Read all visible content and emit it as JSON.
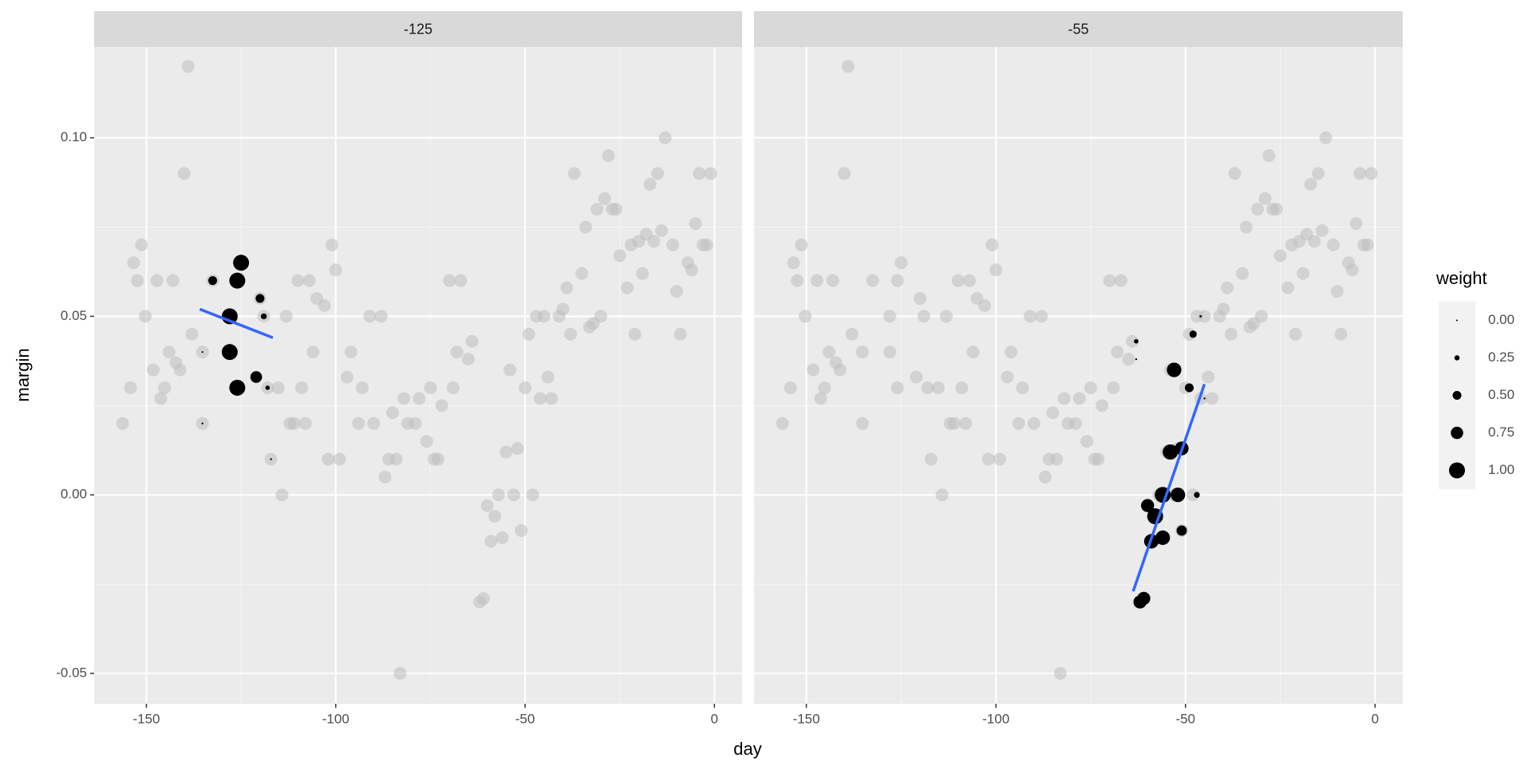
{
  "chart_data": {
    "type": "scatter",
    "x_label": "day",
    "y_label": "margin",
    "xlim": [
      -163.8,
      7.3
    ],
    "xticks": [
      -150,
      -100,
      -50,
      0
    ],
    "ylim": [
      -0.0585,
      0.1254
    ],
    "yticks": [
      {
        "value": -0.05,
        "label": "-0.05"
      },
      {
        "value": 0,
        "label": "0.00"
      },
      {
        "value": 0.05,
        "label": "0.05"
      },
      {
        "value": 0.1,
        "label": "0.10"
      }
    ],
    "grid": true,
    "background_color": "#bdbdbd",
    "weighted_color": "#000000",
    "fit_color": "#3366ff",
    "background": {
      "x": [
        -156.3,
        -154.2,
        -153.4,
        -152.4,
        -151.3,
        -150.3,
        -148.2,
        -147.2,
        -146.2,
        -145.2,
        -144,
        -143,
        -142.2,
        -141.1,
        -140,
        -139,
        -138,
        -135.2,
        -135.2,
        -132.5,
        -128,
        -128,
        -126,
        -126,
        -125,
        -121,
        -120,
        -119,
        -118,
        -117.1,
        -115.2,
        -114.2,
        -113.1,
        -112.1,
        -111,
        -110,
        -109,
        -108,
        -107,
        -106,
        -105,
        -103,
        -102,
        -101,
        -100,
        -99,
        -97,
        -96,
        -94,
        -93,
        -91,
        -90,
        -88,
        -87,
        -86,
        -85,
        -84,
        -83,
        -82,
        -81,
        -79,
        -78,
        -76,
        -75,
        -74,
        -73,
        -72,
        -70,
        -69,
        -68,
        -67,
        -65,
        -64,
        -62,
        -61,
        -60,
        -59,
        -58,
        -57,
        -56,
        -55,
        -54,
        -53,
        -52,
        -51,
        -50,
        -49,
        -48,
        -47,
        -46,
        -45,
        -44,
        -43,
        -41,
        -40,
        -39,
        -38,
        -37,
        -35,
        -34,
        -33,
        -32,
        -31,
        -30,
        -29,
        -28,
        -27,
        -26,
        -25,
        -23,
        -22,
        -21,
        -20,
        -19,
        -18,
        -17,
        -16,
        -15,
        -14,
        -13,
        -11,
        -10,
        -9,
        -7,
        -6,
        -5,
        -4,
        -3,
        -2,
        -1
      ],
      "y": [
        0.02,
        0.03,
        0.065,
        0.06,
        0.07,
        0.05,
        0.035,
        0.06,
        0.027,
        0.03,
        0.04,
        0.06,
        0.037,
        0.035,
        0.09,
        0.12,
        0.045,
        0.04,
        0.02,
        0.06,
        0.05,
        0.04,
        0.06,
        0.03,
        0.065,
        0.033,
        0.055,
        0.05,
        0.03,
        0.01,
        0.03,
        0,
        0.05,
        0.02,
        0.02,
        0.06,
        0.03,
        0.02,
        0.06,
        0.04,
        0.055,
        0.053,
        0.01,
        0.07,
        0.063,
        0.01,
        0.033,
        0.04,
        0.02,
        0.03,
        0.05,
        0.02,
        0.05,
        0.005,
        0.01,
        0.023,
        0.01,
        -0.05,
        0.027,
        0.02,
        0.02,
        0.027,
        0.015,
        0.03,
        0.01,
        0.01,
        0.025,
        0.06,
        0.03,
        0.04,
        0.06,
        0.038,
        0.043,
        -0.03,
        -0.029,
        -0.003,
        -0.013,
        -0.006,
        0,
        -0.012,
        0.012,
        0.035,
        0,
        0.013,
        -0.01,
        0.03,
        0.045,
        0,
        0.05,
        0.027,
        0.05,
        0.033,
        0.027,
        0.05,
        0.052,
        0.058,
        0.045,
        0.09,
        0.062,
        0.075,
        0.047,
        0.048,
        0.08,
        0.05,
        0.083,
        0.095,
        0.08,
        0.08,
        0.067,
        0.058,
        0.07,
        0.045,
        0.071,
        0.062,
        0.073,
        0.087,
        0.071,
        0.09,
        0.074,
        0.1,
        0.07,
        0.057,
        0.045,
        0.065,
        0.063,
        0.076,
        0.09,
        0.07,
        0.07,
        0.09
      ]
    },
    "facets": [
      {
        "label": "-125",
        "weighted": {
          "x": [
            -132.5,
            -125,
            -126,
            -128,
            -128,
            -126,
            -121,
            -120,
            -119,
            -118,
            -117.1,
            -135.2,
            -135.2
          ],
          "y": [
            0.06,
            0.065,
            0.06,
            0.05,
            0.04,
            0.03,
            0.033,
            0.055,
            0.05,
            0.03,
            0.01,
            0.02,
            0.04
          ],
          "weight": [
            0.5,
            1,
            1,
            1,
            1,
            1,
            0.7,
            0.5,
            0.3,
            0.2,
            0.02,
            0.02,
            0.01
          ]
        },
        "fit": {
          "x": [
            -135.9,
            -116.6
          ],
          "y": [
            0.052,
            0.044
          ]
        }
      },
      {
        "label": "-55",
        "weighted": {
          "x": [
            -63,
            -63,
            -46,
            -48,
            -49,
            -53,
            -54,
            -51,
            -56,
            -52,
            -47,
            -60,
            -58,
            -59,
            -56,
            -51,
            -61,
            -62,
            -45
          ],
          "y": [
            0.043,
            0.038,
            0.05,
            0.045,
            0.03,
            0.035,
            0.012,
            0.013,
            0,
            0,
            0,
            -0.003,
            -0.006,
            -0.013,
            -0.012,
            -0.01,
            -0.029,
            -0.03,
            0.027
          ],
          "weight": [
            0.2,
            0.02,
            0.05,
            0.4,
            0.5,
            0.9,
            0.95,
            0.85,
            1,
            0.9,
            0.3,
            0.8,
            1,
            0.9,
            0.9,
            0.6,
            0.8,
            0.8,
            0.02
          ]
        },
        "fit": {
          "x": [
            -63.8,
            -45
          ],
          "y": [
            -0.027,
            0.031
          ]
        }
      }
    ],
    "size_legend": {
      "title": "weight",
      "values": [
        {
          "value": 0,
          "label": "0.00"
        },
        {
          "value": 0.25,
          "label": "0.25"
        },
        {
          "value": 0.5,
          "label": "0.50"
        },
        {
          "value": 0.75,
          "label": "0.75"
        },
        {
          "value": 1,
          "label": "1.00"
        }
      ]
    }
  }
}
